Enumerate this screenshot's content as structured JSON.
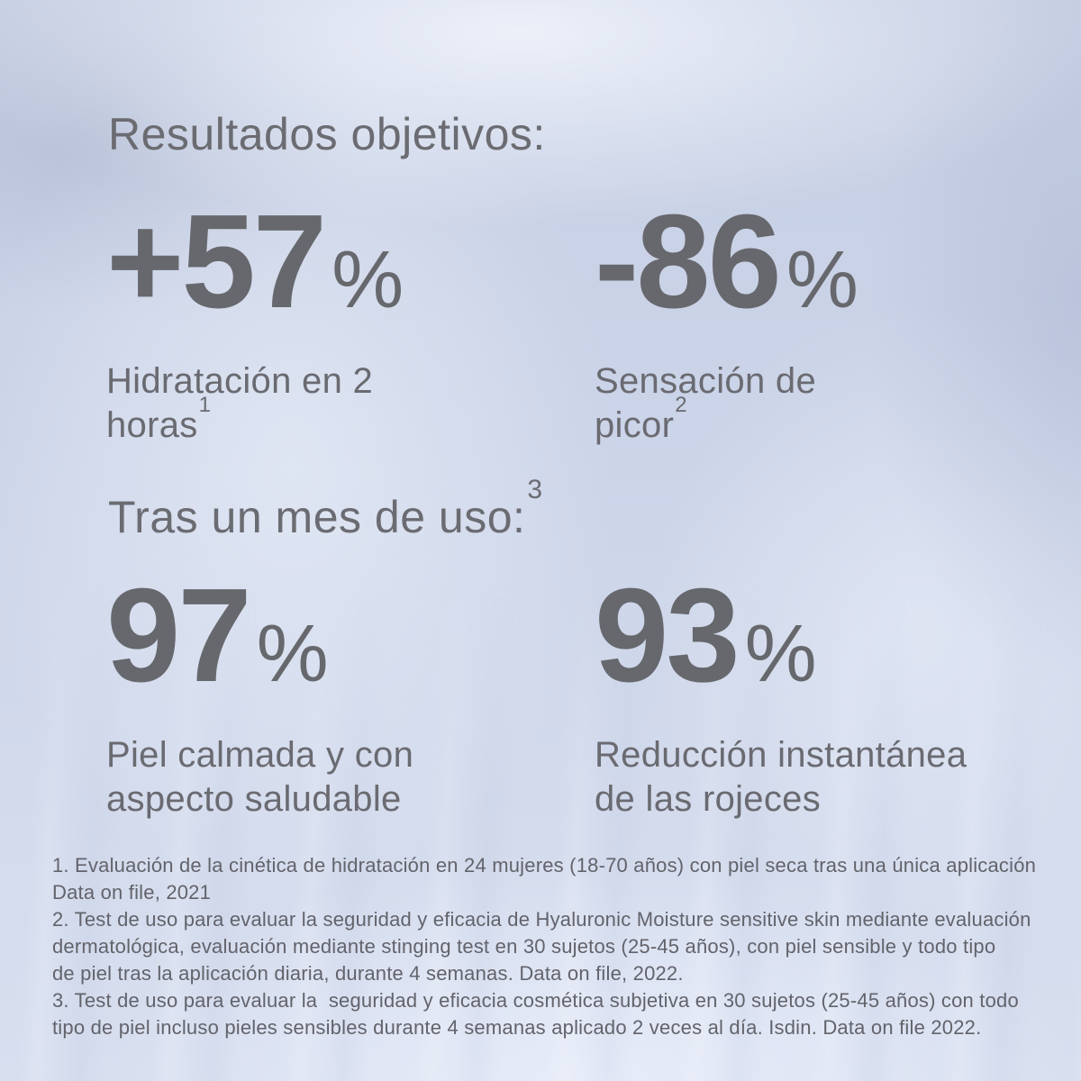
{
  "theme": {
    "background_top": "#c6cfe3",
    "background_bottom": "#d8dfef",
    "heading_color": "#6b6b72",
    "number_color": "#67686d",
    "label_color": "#6a6a71",
    "footnote_color": "#63636b"
  },
  "sections": [
    {
      "title": "Resultados objetivos:",
      "title_sup": "",
      "stats": [
        {
          "value": "+57",
          "unit": "%",
          "line1": "Hidratación en 2",
          "line2": "horas",
          "sup": "1"
        },
        {
          "value": "-86",
          "unit": "%",
          "line1": "Sensación de",
          "line2": "picor",
          "sup": "2"
        }
      ]
    },
    {
      "title": "Tras un mes de uso:",
      "title_sup": "3",
      "stats": [
        {
          "value": "97",
          "unit": "%",
          "line1": "Piel calmada y con",
          "line2": "aspecto saludable",
          "sup": ""
        },
        {
          "value": "93",
          "unit": "%",
          "line1": "Reducción instantánea",
          "line2": "de las rojeces",
          "sup": ""
        }
      ]
    }
  ],
  "footnotes": [
    "1. Evaluación de la cinética de hidratación en 24 mujeres (18-70 años) con piel seca tras una única aplicación\nData on file, 2021",
    "2. Test de uso para evaluar la seguridad y eficacia de Hyaluronic Moisture sensitive skin mediante evaluación\ndermatológica, evaluación mediante stinging test en 30 sujetos (25-45 años), con piel sensible y todo tipo\nde piel tras la aplicación diaria, durante 4 semanas. Data on file, 2022.",
    "3. Test de uso para evaluar la  seguridad y eficacia cosmética subjetiva en 30 sujetos (25-45 años) con todo\ntipo de piel incluso pieles sensibles durante 4 semanas aplicado 2 veces al día. Isdin. Data on file 2022."
  ]
}
